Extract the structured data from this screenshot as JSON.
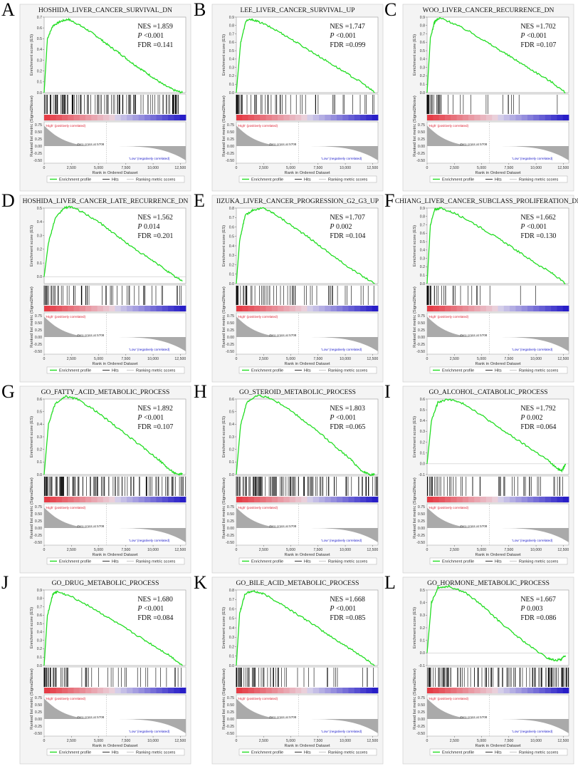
{
  "figure": {
    "x_label": "Rank in Ordered Dataset",
    "x_ticks": [
      "0",
      "2,500",
      "5,000",
      "7,500",
      "10,000",
      "12,500"
    ],
    "es_axis_label": "Enrichment score (ES)",
    "metric_axis_label": "Ranked list metric (Signal2Noise)",
    "metric_ticks": [
      "0.75",
      "0.50",
      "0.25",
      "0.00",
      "-0.25",
      "-0.50"
    ],
    "high_label": "'High' (positively correlated)",
    "low_label": "'Low' (negatively correlated)",
    "zero_cross_label": "Zero cross at 5708",
    "legend": [
      "Enrichment profile",
      "Hits",
      "Ranking metric scores"
    ],
    "colors": {
      "es_line": "#22dd22",
      "high": "#ee3333",
      "low": "#2222cc",
      "hits": "#000000",
      "metric": "#aaaaaa",
      "panel_bg": "#f4f4f4"
    }
  },
  "chart_data": [
    {
      "type": "line",
      "label": "A",
      "title": "HOSHIDA_LIVER_CANCER_SURVIVAL_DN",
      "nes": "1.859",
      "p": "<0.001",
      "fdr": "0.141",
      "ylim": [
        0,
        0.7
      ],
      "yticks": [
        "0.7",
        "0.6",
        "0.5",
        "0.4",
        "0.3",
        "0.2",
        "0.1",
        "0.0"
      ],
      "xlim": [
        0,
        13000
      ],
      "x": [
        0,
        300,
        800,
        1500,
        2200,
        3000,
        4000,
        5000,
        6000,
        7000,
        8000,
        9000,
        10000,
        11000,
        12000,
        12700
      ],
      "es": [
        0,
        0.5,
        0.62,
        0.66,
        0.68,
        0.64,
        0.58,
        0.51,
        0.43,
        0.36,
        0.28,
        0.21,
        0.14,
        0.07,
        0.02,
        0.0
      ],
      "hits_density": "dense"
    },
    {
      "type": "line",
      "label": "B",
      "title": "LEE_LIVER_CANCER_SURVIVAL_UP",
      "nes": "1.747",
      "p": "<0.001",
      "fdr": "0.099",
      "ylim": [
        0,
        0.9
      ],
      "yticks": [
        "0.9",
        "0.8",
        "0.7",
        "0.6",
        "0.5",
        "0.4",
        "0.3",
        "0.2",
        "0.1",
        "0.0"
      ],
      "xlim": [
        0,
        13000
      ],
      "x": [
        0,
        400,
        900,
        1500,
        2500,
        4000,
        5500,
        7000,
        8500,
        10000,
        11500,
        12700
      ],
      "es": [
        0,
        0.6,
        0.86,
        0.87,
        0.82,
        0.72,
        0.6,
        0.48,
        0.36,
        0.24,
        0.12,
        0.0
      ],
      "hits_density": "front"
    },
    {
      "type": "line",
      "label": "C",
      "title": "WOO_LIVER_CANCER_RECURRENCE_DN",
      "nes": "1.702",
      "p": "<0.001",
      "fdr": "0.107",
      "ylim": [
        0,
        0.9
      ],
      "yticks": [
        "0.9",
        "0.8",
        "0.7",
        "0.6",
        "0.5",
        "0.4",
        "0.3",
        "0.2",
        "0.1",
        "0.0"
      ],
      "xlim": [
        0,
        13000
      ],
      "x": [
        0,
        300,
        700,
        1200,
        2500,
        4000,
        5500,
        7000,
        8500,
        10000,
        11500,
        12700
      ],
      "es": [
        0,
        0.65,
        0.85,
        0.89,
        0.82,
        0.72,
        0.6,
        0.48,
        0.36,
        0.24,
        0.12,
        0.0
      ],
      "hits_density": "very-front"
    },
    {
      "type": "line",
      "label": "D",
      "title": "HOSHIDA_LIVER_CANCER_LATE_RECURRENCE_DN",
      "nes": "1.562",
      "p": "0.014",
      "fdr": "0.201",
      "ylim": [
        -0.05,
        0.5
      ],
      "yticks": [
        "0.5",
        "0.4",
        "0.3",
        "0.2",
        "0.1",
        "0.0"
      ],
      "xlim": [
        0,
        13000
      ],
      "x": [
        0,
        400,
        1000,
        1800,
        2500,
        3500,
        5000,
        6500,
        8000,
        9500,
        11000,
        12000,
        12700
      ],
      "es": [
        0,
        0.25,
        0.42,
        0.5,
        0.51,
        0.47,
        0.4,
        0.31,
        0.22,
        0.14,
        0.06,
        0.0,
        -0.03
      ],
      "hits_density": "spread"
    },
    {
      "type": "line",
      "label": "E",
      "title": "IIZUKA_LIVER_CANCER_PROGRESSION_G2_G3_UP",
      "nes": "1.707",
      "p": "0.002",
      "fdr": "0.104",
      "ylim": [
        0,
        0.8
      ],
      "yticks": [
        "0.8",
        "0.7",
        "0.6",
        "0.5",
        "0.4",
        "0.3",
        "0.2",
        "0.1",
        "0.0"
      ],
      "xlim": [
        0,
        13000
      ],
      "x": [
        0,
        300,
        800,
        1500,
        2500,
        3500,
        5000,
        6500,
        8000,
        9500,
        11000,
        12700
      ],
      "es": [
        0,
        0.45,
        0.72,
        0.78,
        0.8,
        0.74,
        0.62,
        0.5,
        0.37,
        0.24,
        0.12,
        0.0
      ],
      "hits_density": "front"
    },
    {
      "type": "line",
      "label": "F",
      "title": "CHIANG_LIVER_CANCER_SUBCLASS_PROLIFERATION_DN",
      "nes": "1.662",
      "p": "<0.001",
      "fdr": "0.130",
      "ylim": [
        0,
        0.9
      ],
      "yticks": [
        "0.9",
        "0.8",
        "0.7",
        "0.6",
        "0.5",
        "0.4",
        "0.3",
        "0.2",
        "0.1",
        "0.0"
      ],
      "xlim": [
        0,
        13000
      ],
      "x": [
        0,
        300,
        700,
        1200,
        2500,
        4000,
        5500,
        7000,
        8500,
        10000,
        11500,
        12700
      ],
      "es": [
        0,
        0.7,
        0.88,
        0.9,
        0.84,
        0.74,
        0.62,
        0.5,
        0.37,
        0.24,
        0.12,
        0.0
      ],
      "hits_density": "very-front"
    },
    {
      "type": "line",
      "label": "G",
      "title": "GO_FATTY_ACID_METABOLIC_PROCESS",
      "nes": "1.892",
      "p": "<0.001",
      "fdr": "0.107",
      "ylim": [
        0,
        0.6
      ],
      "yticks": [
        "0.6",
        "0.5",
        "0.4",
        "0.3",
        "0.2",
        "0.1",
        "0.0"
      ],
      "xlim": [
        0,
        13000
      ],
      "x": [
        0,
        400,
        1000,
        2000,
        3000,
        4500,
        6000,
        7500,
        9000,
        10500,
        11500,
        12200,
        12700
      ],
      "es": [
        0,
        0.4,
        0.56,
        0.62,
        0.6,
        0.52,
        0.42,
        0.32,
        0.22,
        0.12,
        0.04,
        0.0,
        0.01
      ],
      "hits_density": "dense"
    },
    {
      "type": "line",
      "label": "H",
      "title": "GO_STEROID_METABOLIC_PROCESS",
      "nes": "1.803",
      "p": "<0.001",
      "fdr": "0.065",
      "ylim": [
        0,
        0.6
      ],
      "yticks": [
        "0.6",
        "0.5",
        "0.4",
        "0.3",
        "0.2",
        "0.1",
        "0.0"
      ],
      "xlim": [
        0,
        13000
      ],
      "x": [
        0,
        400,
        1000,
        2000,
        3000,
        4500,
        6000,
        7500,
        9000,
        10500,
        11500,
        12200,
        12700
      ],
      "es": [
        0,
        0.4,
        0.58,
        0.63,
        0.61,
        0.54,
        0.44,
        0.34,
        0.23,
        0.12,
        0.03,
        0.0,
        0.0
      ],
      "hits_density": "dense"
    },
    {
      "type": "line",
      "label": "I",
      "title": "GO_ALCOHOL_CATABOLIC_PROCESS",
      "nes": "1.792",
      "p": "0.002",
      "fdr": "0.064",
      "ylim": [
        -0.1,
        0.6
      ],
      "yticks": [
        "0.6",
        "0.5",
        "0.4",
        "0.3",
        "0.2",
        "0.1",
        "0.0",
        "-0.1"
      ],
      "xlim": [
        0,
        13000
      ],
      "x": [
        0,
        400,
        1000,
        2000,
        3500,
        5000,
        6500,
        8000,
        9500,
        11000,
        12000,
        12400,
        12700
      ],
      "es": [
        0,
        0.4,
        0.57,
        0.6,
        0.55,
        0.45,
        0.34,
        0.24,
        0.14,
        0.04,
        -0.05,
        -0.06,
        0.0
      ],
      "hits_density": "spread"
    },
    {
      "type": "line",
      "label": "J",
      "title": "GO_DRUG_METABOLIC_PROCESS",
      "nes": "1.680",
      "p": "<0.001",
      "fdr": "0.084",
      "ylim": [
        0,
        0.9
      ],
      "yticks": [
        "0.9",
        "0.8",
        "0.7",
        "0.6",
        "0.5",
        "0.4",
        "0.3",
        "0.2",
        "0.1",
        "0.0"
      ],
      "xlim": [
        0,
        13000
      ],
      "x": [
        0,
        300,
        800,
        1200,
        2500,
        4000,
        5500,
        7000,
        8500,
        10000,
        11500,
        12700
      ],
      "es": [
        0,
        0.6,
        0.85,
        0.88,
        0.82,
        0.72,
        0.6,
        0.48,
        0.36,
        0.24,
        0.12,
        0.0
      ],
      "hits_density": "front"
    },
    {
      "type": "line",
      "label": "K",
      "title": "GO_BILE_ACID_METABOLIC_PROCESS",
      "nes": "1.668",
      "p": "<0.001",
      "fdr": "0.085",
      "ylim": [
        0,
        0.8
      ],
      "yticks": [
        "0.8",
        "0.7",
        "0.6",
        "0.5",
        "0.4",
        "0.3",
        "0.2",
        "0.1",
        "0.0"
      ],
      "xlim": [
        0,
        13000
      ],
      "x": [
        0,
        300,
        800,
        1500,
        2500,
        4000,
        5500,
        7000,
        8500,
        10000,
        11500,
        12700
      ],
      "es": [
        0,
        0.55,
        0.76,
        0.79,
        0.76,
        0.66,
        0.55,
        0.44,
        0.32,
        0.21,
        0.1,
        0.0
      ],
      "hits_density": "front"
    },
    {
      "type": "line",
      "label": "L",
      "title": "GO_HORMONE_METABOLIC_PROCESS",
      "nes": "1.667",
      "p": "0.003",
      "fdr": "0.086",
      "ylim": [
        -0.1,
        0.5
      ],
      "yticks": [
        "0.5",
        "0.4",
        "0.3",
        "0.2",
        "0.1",
        "0.0",
        "-0.1"
      ],
      "xlim": [
        0,
        13000
      ],
      "x": [
        0,
        400,
        1000,
        2000,
        3500,
        5000,
        6500,
        8000,
        9500,
        11000,
        11800,
        12300,
        12700
      ],
      "es": [
        0,
        0.4,
        0.52,
        0.53,
        0.48,
        0.38,
        0.26,
        0.15,
        0.05,
        -0.04,
        -0.06,
        -0.05,
        -0.02
      ],
      "hits_density": "dense"
    }
  ]
}
